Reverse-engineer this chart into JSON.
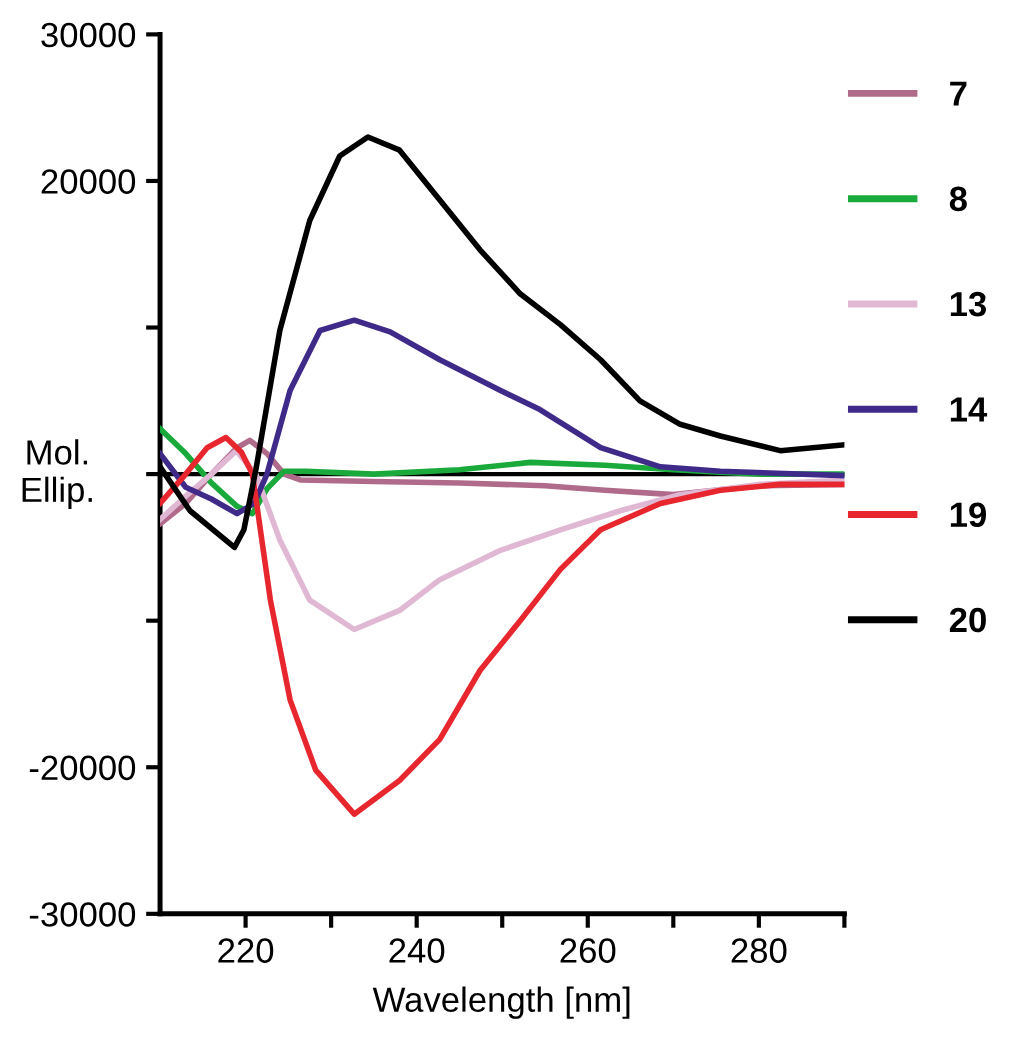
{
  "chart_data": {
    "type": "line",
    "xlabel": "Wavelength [nm]",
    "ylabel": "Mol.\nEllip.",
    "xlim": [
      210,
      290
    ],
    "xticks": [
      {
        "value": 220,
        "label": "220"
      },
      {
        "value": 230,
        "label": null
      },
      {
        "value": 240,
        "label": "240"
      },
      {
        "value": 250,
        "label": null
      },
      {
        "value": 260,
        "label": "260"
      },
      {
        "value": 270,
        "label": null
      },
      {
        "value": 280,
        "label": "280"
      },
      {
        "value": 290,
        "label": null
      }
    ],
    "ylim": [
      -30000,
      30000
    ],
    "yticks": [
      -30000,
      -20000,
      {
        "value": -10000,
        "label": null
      },
      {
        "value": 0,
        "label": null
      },
      {
        "value": 10000,
        "label": null
      },
      20000,
      30000
    ],
    "grid": false,
    "legend": "right",
    "line_style": "solid",
    "ref_lines": [
      {
        "axis": "y",
        "value": 0,
        "color": "#000000",
        "line_style": "solid"
      }
    ],
    "series": [
      {
        "name": "7",
        "color": "#b06a8a",
        "x": [
          210,
          213,
          216,
          219,
          220.5,
          222.5,
          224.5,
          226.4,
          235,
          245,
          255,
          262,
          270,
          280,
          290
        ],
        "values": [
          -3400,
          -2000,
          0,
          1800,
          2300,
          1400,
          0,
          -400,
          -500,
          -600,
          -800,
          -1100,
          -1400,
          -800,
          -700
        ]
      },
      {
        "name": "8",
        "color": "#1aaa3c",
        "x": [
          210,
          213,
          216,
          219,
          220.8,
          222.5,
          224.5,
          227,
          235,
          245,
          253.3,
          262,
          270,
          280,
          290
        ],
        "values": [
          3100,
          1400,
          -600,
          -2200,
          -2700,
          -1000,
          200,
          200,
          0,
          300,
          800,
          600,
          300,
          0,
          0
        ]
      },
      {
        "name": "13",
        "color": "#e0b8d4",
        "x": [
          210,
          213,
          216,
          218.9,
          221.2,
          224,
          227.5,
          232.7,
          238,
          242.7,
          249.8,
          256.8,
          263.8,
          270.8,
          280.2,
          290
        ],
        "values": [
          -3100,
          -1500,
          0,
          1600,
          0,
          -4500,
          -8600,
          -10600,
          -9300,
          -7200,
          -5200,
          -3800,
          -2500,
          -1400,
          -700,
          -400
        ]
      },
      {
        "name": "14",
        "color": "#3f2a8a",
        "x": [
          210,
          213,
          216,
          219,
          221,
          222.5,
          225.2,
          228.7,
          232.7,
          236.9,
          242.7,
          249.8,
          254.4,
          261.5,
          268.5,
          275.5,
          290
        ],
        "values": [
          1400,
          -900,
          -1700,
          -2700,
          -2000,
          0,
          5700,
          9800,
          10500,
          9700,
          7800,
          5700,
          4400,
          1800,
          500,
          200,
          -100
        ]
      },
      {
        "name": "19",
        "color": "#e8262e",
        "x": [
          210,
          213,
          215.5,
          217.7,
          219.5,
          220.8,
          222.9,
          225.2,
          228.2,
          232.7,
          238,
          242.7,
          247.4,
          252.1,
          256.8,
          261.5,
          268.5,
          275.5,
          282.5,
          290
        ],
        "values": [
          -2000,
          0,
          1800,
          2500,
          1500,
          0,
          -8600,
          -15400,
          -20200,
          -23200,
          -20900,
          -18100,
          -13400,
          -10000,
          -6500,
          -3800,
          -2000,
          -1100,
          -700,
          -700
        ]
      },
      {
        "name": "20",
        "color": "#000000",
        "x": [
          210,
          213.5,
          218.7,
          219.8,
          221.2,
          224,
          227.5,
          231,
          234.3,
          238,
          242.7,
          247.4,
          252.1,
          256.8,
          261.5,
          266.1,
          270.8,
          275.5,
          282.5,
          290
        ],
        "values": [
          500,
          -2500,
          -5000,
          -3800,
          300,
          9800,
          17300,
          21700,
          23000,
          22100,
          18700,
          15300,
          12300,
          10200,
          7800,
          5000,
          3400,
          2600,
          1600,
          2000
        ]
      }
    ]
  }
}
